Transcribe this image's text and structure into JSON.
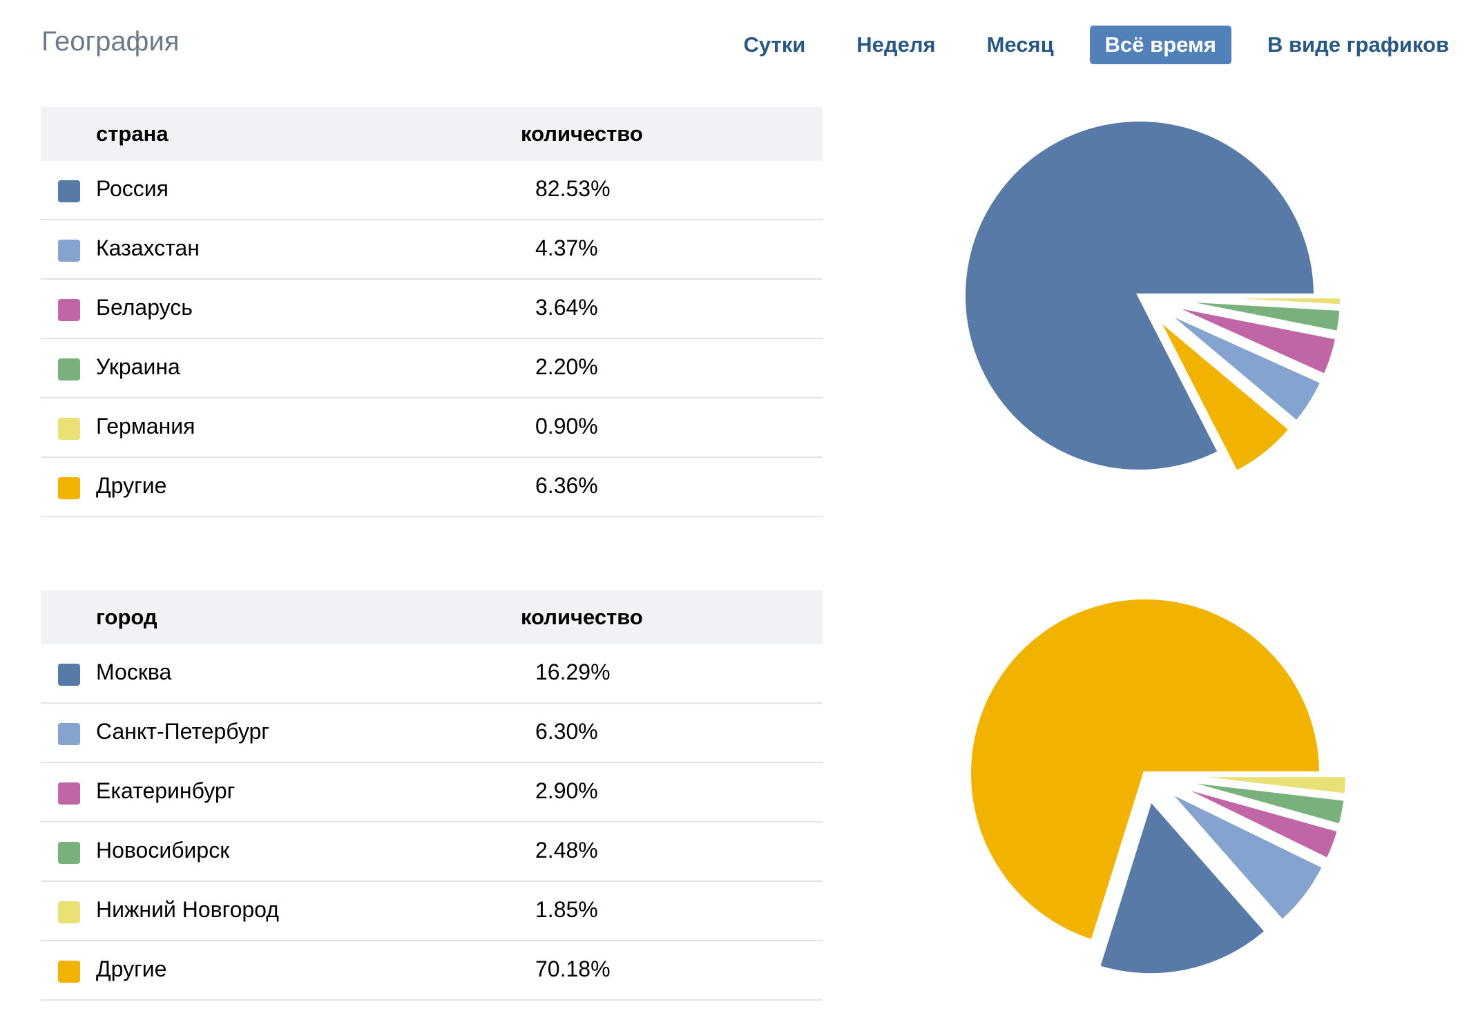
{
  "header": {
    "title": "География",
    "tabs": [
      {
        "label": "Сутки",
        "active": false
      },
      {
        "label": "Неделя",
        "active": false
      },
      {
        "label": "Месяц",
        "active": false
      },
      {
        "label": "Всё время",
        "active": true
      },
      {
        "label": "В виде графиков",
        "active": false
      }
    ]
  },
  "colors": {
    "blue": "#587aa6",
    "light_blue": "#84a3cf",
    "pink": "#c066a6",
    "green": "#79b17c",
    "yellow": "#e9e176",
    "orange": "#f2b200"
  },
  "countries": {
    "col_name": "страна",
    "col_value": "количество",
    "rows": [
      {
        "name": "Россия",
        "value": "82.53%",
        "color": "#587aa6"
      },
      {
        "name": "Казахстан",
        "value": "4.37%",
        "color": "#84a3cf"
      },
      {
        "name": "Беларусь",
        "value": "3.64%",
        "color": "#c066a6"
      },
      {
        "name": "Украина",
        "value": "2.20%",
        "color": "#79b17c"
      },
      {
        "name": "Германия",
        "value": "0.90%",
        "color": "#e9e176"
      },
      {
        "name": "Другие",
        "value": "6.36%",
        "color": "#f2b200"
      }
    ]
  },
  "cities": {
    "col_name": "город",
    "col_value": "количество",
    "rows": [
      {
        "name": "Москва",
        "value": "16.29%",
        "color": "#587aa6"
      },
      {
        "name": "Санкт-Петербург",
        "value": "6.30%",
        "color": "#84a3cf"
      },
      {
        "name": "Екатеринбург",
        "value": "2.90%",
        "color": "#c066a6"
      },
      {
        "name": "Новосибирск",
        "value": "2.48%",
        "color": "#79b17c"
      },
      {
        "name": "Нижний Новгород",
        "value": "1.85%",
        "color": "#e9e176"
      },
      {
        "name": "Другие",
        "value": "70.18%",
        "color": "#f2b200"
      }
    ]
  },
  "chart_data": [
    {
      "type": "pie",
      "categories": [
        "Россия",
        "Казахстан",
        "Беларусь",
        "Украина",
        "Германия",
        "Другие"
      ],
      "values": [
        82.53,
        4.37,
        3.64,
        2.2,
        0.9,
        6.36
      ],
      "colors": [
        "#587aa6",
        "#84a3cf",
        "#c066a6",
        "#79b17c",
        "#e9e176",
        "#f2b200"
      ],
      "main_slice": "Россия"
    },
    {
      "type": "pie",
      "categories": [
        "Москва",
        "Санкт-Петербург",
        "Екатеринбург",
        "Новосибирск",
        "Нижний Новгород",
        "Другие"
      ],
      "values": [
        16.29,
        6.3,
        2.9,
        2.48,
        1.85,
        70.18
      ],
      "colors": [
        "#587aa6",
        "#84a3cf",
        "#c066a6",
        "#79b17c",
        "#e9e176",
        "#f2b200"
      ],
      "main_slice": "Другие"
    }
  ]
}
